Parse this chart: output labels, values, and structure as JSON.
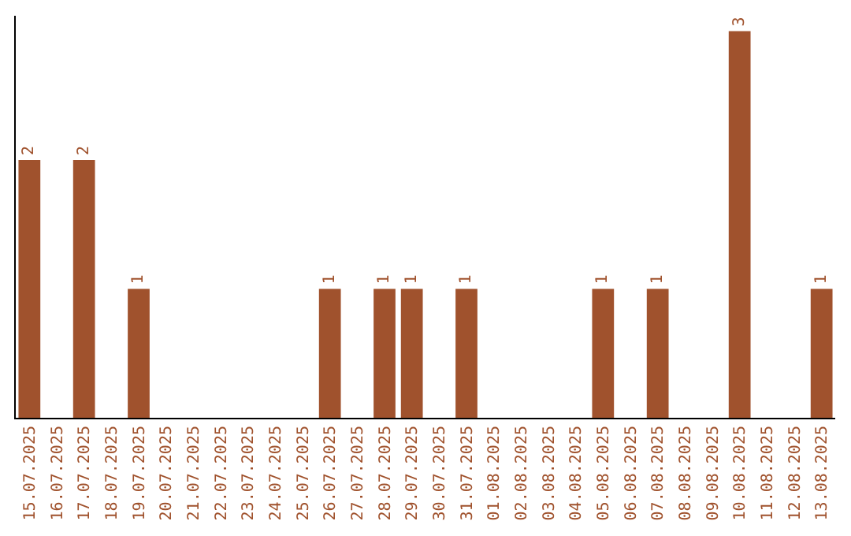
{
  "chart_data": {
    "type": "bar",
    "categories": [
      "15.07.2025",
      "16.07.2025",
      "17.07.2025",
      "18.07.2025",
      "19.07.2025",
      "20.07.2025",
      "21.07.2025",
      "22.07.2025",
      "23.07.2025",
      "24.07.2025",
      "25.07.2025",
      "26.07.2025",
      "27.07.2025",
      "28.07.2025",
      "29.07.2025",
      "30.07.2025",
      "31.07.2025",
      "01.08.2025",
      "02.08.2025",
      "03.08.2025",
      "04.08.2025",
      "05.08.2025",
      "06.08.2025",
      "07.08.2025",
      "08.08.2025",
      "09.08.2025",
      "10.08.2025",
      "11.08.2025",
      "12.08.2025",
      "13.08.2025"
    ],
    "values": [
      2,
      0,
      2,
      0,
      1,
      0,
      0,
      0,
      0,
      0,
      0,
      1,
      0,
      1,
      1,
      0,
      1,
      0,
      0,
      0,
      0,
      1,
      0,
      1,
      0,
      0,
      3,
      0,
      0,
      1
    ],
    "value_labels": [
      "2",
      null,
      "2",
      null,
      "1",
      null,
      null,
      null,
      null,
      null,
      null,
      "1",
      null,
      "1",
      "1",
      null,
      "1",
      null,
      null,
      null,
      null,
      "1",
      null,
      "1",
      null,
      null,
      "3",
      null,
      null,
      "1"
    ],
    "color": "#a0522d",
    "ylim": [
      0,
      3.12
    ],
    "tick_labels": "x",
    "legend": false
  }
}
